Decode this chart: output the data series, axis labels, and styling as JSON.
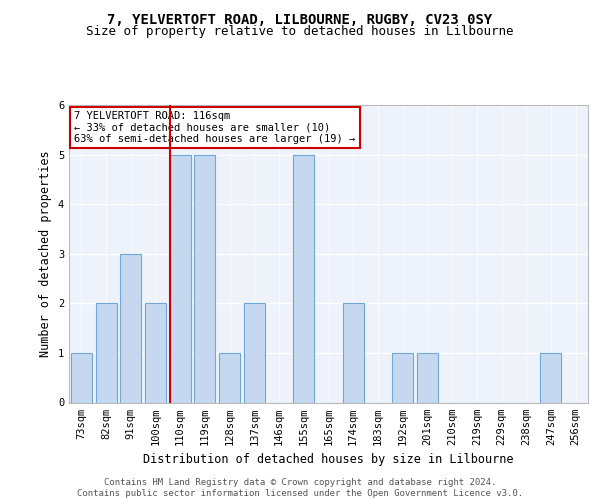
{
  "title1": "7, YELVERTOFT ROAD, LILBOURNE, RUGBY, CV23 0SY",
  "title2": "Size of property relative to detached houses in Lilbourne",
  "xlabel": "Distribution of detached houses by size in Lilbourne",
  "ylabel": "Number of detached properties",
  "categories": [
    "73sqm",
    "82sqm",
    "91sqm",
    "100sqm",
    "110sqm",
    "119sqm",
    "128sqm",
    "137sqm",
    "146sqm",
    "155sqm",
    "165sqm",
    "174sqm",
    "183sqm",
    "192sqm",
    "201sqm",
    "210sqm",
    "219sqm",
    "229sqm",
    "238sqm",
    "247sqm",
    "256sqm"
  ],
  "values": [
    1,
    2,
    3,
    2,
    5,
    5,
    1,
    2,
    0,
    5,
    0,
    2,
    0,
    1,
    1,
    0,
    0,
    0,
    0,
    1,
    0
  ],
  "bar_color": "#c5d8f0",
  "bar_edge_color": "#6fa8d6",
  "highlight_index": 4,
  "highlight_line_color": "#cc0000",
  "annotation_text": "7 YELVERTOFT ROAD: 116sqm\n← 33% of detached houses are smaller (10)\n63% of semi-detached houses are larger (19) →",
  "annotation_box_edge": "#cc0000",
  "ylim": [
    0,
    6
  ],
  "yticks": [
    0,
    1,
    2,
    3,
    4,
    5,
    6
  ],
  "footer": "Contains HM Land Registry data © Crown copyright and database right 2024.\nContains public sector information licensed under the Open Government Licence v3.0.",
  "title1_fontsize": 10,
  "title2_fontsize": 9,
  "xlabel_fontsize": 8.5,
  "ylabel_fontsize": 8.5,
  "tick_fontsize": 7.5,
  "annotation_fontsize": 7.5,
  "footer_fontsize": 6.5,
  "bg_color": "#eef2fa"
}
